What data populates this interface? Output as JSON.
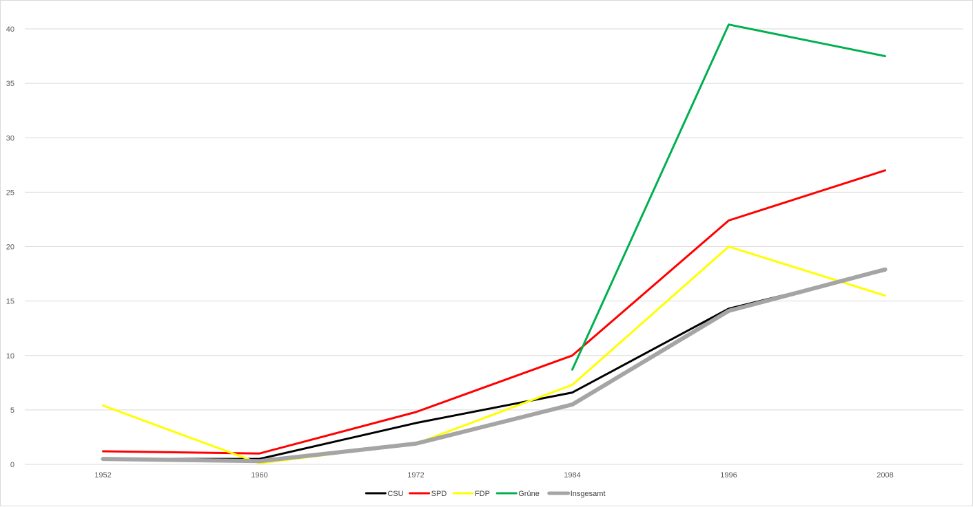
{
  "chart_data": {
    "type": "line",
    "title": "",
    "xlabel": "",
    "ylabel": "",
    "categories": [
      "1952",
      "1960",
      "1972",
      "1984",
      "1996",
      "2008"
    ],
    "ylim": [
      0,
      40
    ],
    "yticks": [
      0,
      5,
      10,
      15,
      20,
      25,
      30,
      35,
      40
    ],
    "grid": true,
    "legend_position": "bottom-center",
    "series": [
      {
        "name": "CSU",
        "color": "#000000",
        "values": [
          0.5,
          0.5,
          3.8,
          6.6,
          14.3,
          17.8
        ]
      },
      {
        "name": "SPD",
        "color": "#ff0000",
        "values": [
          1.2,
          1.0,
          4.8,
          10.0,
          22.4,
          27.0
        ]
      },
      {
        "name": "FDP",
        "color": "#ffff00",
        "values": [
          5.4,
          0.1,
          1.9,
          7.3,
          20.0,
          15.5
        ]
      },
      {
        "name": "Grüne",
        "color": "#00b050",
        "values": [
          null,
          null,
          null,
          8.7,
          40.4,
          37.5
        ]
      },
      {
        "name": "Insgesamt",
        "color": "#a5a5a5",
        "values": [
          0.5,
          0.3,
          1.9,
          5.5,
          14.1,
          17.9
        ]
      }
    ]
  }
}
